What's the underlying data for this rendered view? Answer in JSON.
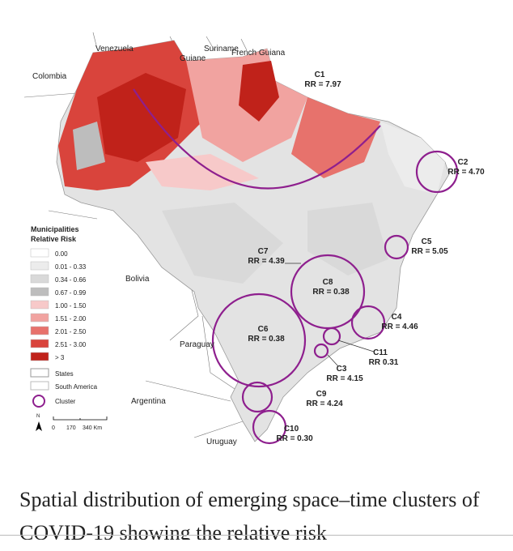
{
  "map": {
    "countries": [
      "Venezuela",
      "Guiane",
      "Suriname",
      "French Guiana",
      "Colombia",
      "Bolivia",
      "Paraguay",
      "Argentina",
      "Uruguay"
    ],
    "clusters": [
      {
        "name": "C1",
        "label": "RR = 7.97"
      },
      {
        "name": "C2",
        "label": "RR = 4.70"
      },
      {
        "name": "C3",
        "label": "RR = 4.15"
      },
      {
        "name": "C4",
        "label": "RR = 4.46"
      },
      {
        "name": "C5",
        "label": "RR = 5.05"
      },
      {
        "name": "C6",
        "label": "RR = 0.38"
      },
      {
        "name": "C7",
        "label": "RR = 4.39"
      },
      {
        "name": "C8",
        "label": "RR = 0.38"
      },
      {
        "name": "C9",
        "label": "RR = 4.24"
      },
      {
        "name": "C10",
        "label": "RR = 0.30"
      },
      {
        "name": "C11",
        "label": "RR 0.31"
      }
    ],
    "legend": {
      "title": [
        "Municipalities",
        "Relative Risk"
      ],
      "items": [
        {
          "label": "0.00",
          "color": "#ffffff"
        },
        {
          "label": "0.01 - 0.33",
          "color": "#ececec"
        },
        {
          "label": "0.34 - 0.66",
          "color": "#d9d9d9"
        },
        {
          "label": "0.67 - 0.99",
          "color": "#bdbdbd"
        },
        {
          "label": "1.00 - 1.50",
          "color": "#f7c9c9"
        },
        {
          "label": "1.51 - 2.00",
          "color": "#f1a3a0"
        },
        {
          "label": "2.01 - 2.50",
          "color": "#e7726c"
        },
        {
          "label": "2.51 - 3.00",
          "color": "#d9443c"
        },
        {
          "label": "> 3",
          "color": "#c0221a"
        }
      ],
      "states": "States",
      "south_america": "South America",
      "cluster": "Cluster"
    },
    "scale": {
      "north": "N",
      "ticks": [
        "0",
        "170",
        "340 Km"
      ]
    }
  },
  "caption": "Spatial distribution of emerging space–time clusters of COVID-19 showing the relative risk"
}
